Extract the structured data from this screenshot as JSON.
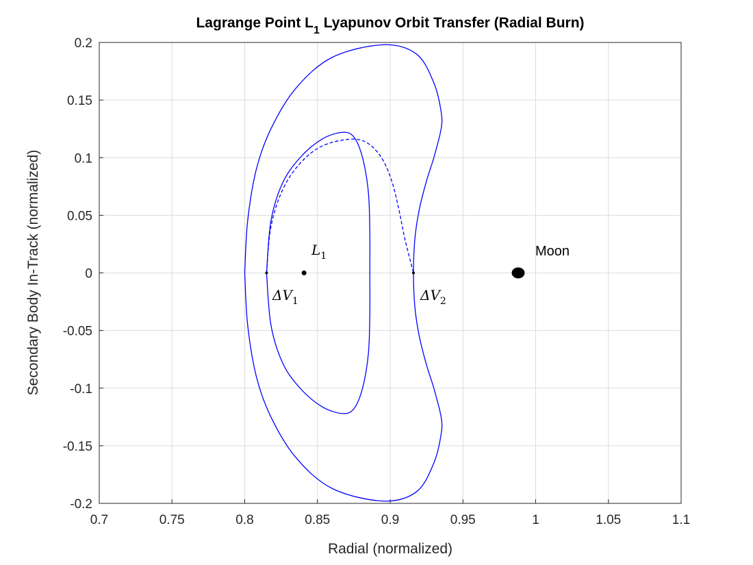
{
  "chart_data": {
    "type": "line",
    "title_main": "Lagrange Point L",
    "title_sub": "1",
    "title_rest": " Lyapunov Orbit Transfer (Radial Burn)",
    "xlabel": "Radial (normalized)",
    "ylabel": "Secondary Body In-Track (normalized)",
    "xlim": [
      0.7,
      1.1
    ],
    "ylim": [
      -0.2,
      0.2
    ],
    "xticks": [
      0.7,
      0.75,
      0.8,
      0.85,
      0.9,
      0.95,
      1.0,
      1.05,
      1.1
    ],
    "xtick_labels": [
      "0.7",
      "0.75",
      "0.8",
      "0.85",
      "0.9",
      "0.95",
      "1",
      "1.05",
      "1.1"
    ],
    "yticks": [
      0.2,
      0.15,
      0.1,
      0.05,
      0,
      -0.05,
      -0.1,
      -0.15,
      -0.2
    ],
    "ytick_labels": [
      "0.2",
      "0.15",
      "0.1",
      "0.05",
      "0",
      "-0.05",
      "-0.1",
      "-0.15",
      "-0.2"
    ],
    "grid": true,
    "line_color": "#0000ff",
    "series": [
      {
        "style": "solid",
        "points": [
          [
            0.815,
            0
          ],
          [
            0.818,
            0.045
          ],
          [
            0.826,
            0.078
          ],
          [
            0.838,
            0.1
          ],
          [
            0.853,
            0.116
          ],
          [
            0.867,
            0.122
          ],
          [
            0.875,
            0.118
          ],
          [
            0.881,
            0.1
          ],
          [
            0.885,
            0.07
          ],
          [
            0.886,
            0.035
          ],
          [
            0.886,
            0
          ],
          [
            0.886,
            -0.035
          ],
          [
            0.885,
            -0.07
          ],
          [
            0.881,
            -0.1
          ],
          [
            0.875,
            -0.118
          ],
          [
            0.867,
            -0.122
          ],
          [
            0.853,
            -0.116
          ],
          [
            0.838,
            -0.1
          ],
          [
            0.826,
            -0.078
          ],
          [
            0.818,
            -0.045
          ],
          [
            0.815,
            0
          ]
        ]
      },
      {
        "style": "solid",
        "points": [
          [
            0.8,
            0
          ],
          [
            0.802,
            0.045
          ],
          [
            0.808,
            0.09
          ],
          [
            0.818,
            0.125
          ],
          [
            0.835,
            0.16
          ],
          [
            0.86,
            0.187
          ],
          [
            0.895,
            0.198
          ],
          [
            0.918,
            0.19
          ],
          [
            0.93,
            0.165
          ],
          [
            0.935,
            0.14
          ],
          [
            0.935,
            0.125
          ],
          [
            0.93,
            0.1
          ],
          [
            0.925,
            0.08
          ],
          [
            0.92,
            0.055
          ],
          [
            0.917,
            0.03
          ],
          [
            0.916,
            0
          ],
          [
            0.917,
            -0.03
          ],
          [
            0.92,
            -0.055
          ],
          [
            0.925,
            -0.08
          ],
          [
            0.93,
            -0.1
          ],
          [
            0.935,
            -0.125
          ],
          [
            0.935,
            -0.14
          ],
          [
            0.93,
            -0.165
          ],
          [
            0.918,
            -0.19
          ],
          [
            0.895,
            -0.198
          ],
          [
            0.86,
            -0.187
          ],
          [
            0.835,
            -0.16
          ],
          [
            0.818,
            -0.125
          ],
          [
            0.808,
            -0.09
          ],
          [
            0.802,
            -0.045
          ],
          [
            0.8,
            0
          ]
        ]
      },
      {
        "style": "dashed",
        "points": [
          [
            0.815,
            0
          ],
          [
            0.818,
            0.04
          ],
          [
            0.826,
            0.072
          ],
          [
            0.838,
            0.095
          ],
          [
            0.853,
            0.11
          ],
          [
            0.872,
            0.116
          ],
          [
            0.884,
            0.113
          ],
          [
            0.894,
            0.1
          ],
          [
            0.901,
            0.08
          ],
          [
            0.906,
            0.055
          ],
          [
            0.91,
            0.03
          ],
          [
            0.916,
            0
          ]
        ]
      }
    ],
    "markers": [
      {
        "name": "l1-point",
        "x": 0.8408,
        "y": 0
      },
      {
        "name": "dv1-point",
        "x": 0.815,
        "y": 0
      },
      {
        "name": "dv2-point",
        "x": 0.916,
        "y": 0
      },
      {
        "name": "moon-body",
        "x": 0.988,
        "y": 0
      }
    ],
    "annotations": {
      "l1_main": "L",
      "l1_sub": "1",
      "dv1_main": "ΔV",
      "dv1_sub": "1",
      "dv2_main": "ΔV",
      "dv2_sub": "2",
      "moon": "Moon"
    }
  }
}
